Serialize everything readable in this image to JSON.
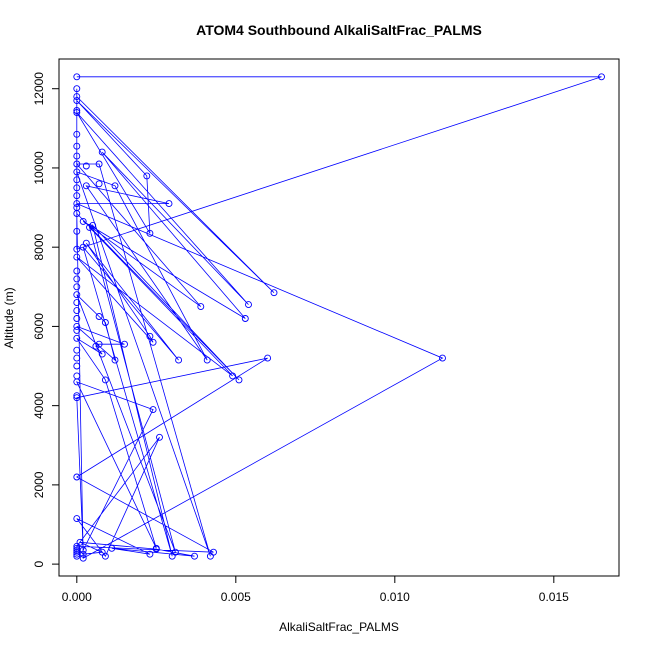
{
  "chart_data": {
    "type": "line",
    "title": "ATOM4 Southbound AlkaliSaltFrac_PALMS",
    "xlabel": "AlkaliSaltFrac_PALMS",
    "ylabel": "Altitude (m)",
    "xlim": [
      -0.00056,
      0.01705
    ],
    "ylim": [
      -300,
      12750
    ],
    "x_ticks": [
      0,
      0.005,
      0.01,
      0.015
    ],
    "x_tick_labels": [
      "0.000",
      "0.005",
      "0.010",
      "0.015"
    ],
    "y_ticks": [
      0,
      2000,
      4000,
      6000,
      8000,
      10000,
      12000
    ],
    "y_tick_labels": [
      "0",
      "2000",
      "4000",
      "6000",
      "8000",
      "10000",
      "12000"
    ],
    "grid": false,
    "color": "#0000ff",
    "series": [
      {
        "marker": "open-circle",
        "points": [
          [
            0,
            12300
          ],
          [
            0.0165,
            12300
          ],
          [
            0,
            7950
          ],
          [
            0,
            12000
          ],
          [
            0,
            11800
          ],
          [
            0.0062,
            6850
          ],
          [
            0,
            11700
          ],
          [
            0.0022,
            9800
          ],
          [
            0.0023,
            8350
          ],
          [
            0,
            11400
          ],
          [
            0.0054,
            6550
          ],
          [
            0.0008,
            10400
          ],
          [
            0.0053,
            6200
          ],
          [
            0.0002,
            8650
          ],
          [
            0.0039,
            6500
          ],
          [
            0,
            10100
          ],
          [
            0.0007,
            10100
          ],
          [
            0.0042,
            200
          ],
          [
            0,
            9900
          ],
          [
            0.0012,
            9550
          ],
          [
            0.0041,
            5150
          ],
          [
            0.0003,
            9550
          ],
          [
            0.0029,
            9100
          ],
          [
            0,
            9100
          ],
          [
            0.0115,
            5200
          ],
          [
            0.0002,
            150
          ],
          [
            0,
            8850
          ],
          [
            0.0051,
            4650
          ],
          [
            0.0005,
            8550
          ],
          [
            0.003,
            200
          ],
          [
            0.0002,
            8000
          ],
          [
            0.0032,
            5150
          ],
          [
            0.0003,
            8100
          ],
          [
            0.0023,
            5750
          ],
          [
            0.0024,
            5600
          ],
          [
            0,
            7750
          ],
          [
            0.0049,
            4750
          ],
          [
            0.0004,
            8500
          ],
          [
            0.0031,
            300
          ],
          [
            0,
            6800
          ],
          [
            0.0007,
            6250
          ],
          [
            0.0009,
            6100
          ],
          [
            0.0012,
            5150
          ],
          [
            0,
            6000
          ],
          [
            0.0015,
            5550
          ],
          [
            0.0007,
            5550
          ],
          [
            0.0006,
            5500
          ],
          [
            0.0008,
            5300
          ],
          [
            0,
            5700
          ],
          [
            0.0009,
            4650
          ],
          [
            0.0025,
            400
          ],
          [
            0,
            4600
          ],
          [
            0.0024,
            3900
          ],
          [
            0.0002,
            350
          ],
          [
            0,
            4200
          ],
          [
            0.006,
            5200
          ],
          [
            0,
            2200
          ],
          [
            0.0043,
            300
          ],
          [
            0,
            450
          ],
          [
            0.0026,
            3200
          ],
          [
            0.0009,
            200
          ],
          [
            0,
            1150
          ],
          [
            0.0023,
            250
          ],
          [
            0.0011,
            400
          ],
          [
            0.0037,
            200
          ],
          [
            0.0025,
            380
          ],
          [
            0.0001,
            550
          ],
          [
            0.0008,
            300
          ],
          [
            0.0002,
            250
          ],
          [
            0,
            400
          ],
          [
            0,
            250
          ]
        ]
      }
    ],
    "extra_points": [
      [
        0,
        11450
      ],
      [
        0,
        10850
      ],
      [
        0,
        10550
      ],
      [
        0,
        10300
      ],
      [
        0,
        9700
      ],
      [
        0,
        9500
      ],
      [
        0,
        9300
      ],
      [
        0,
        9000
      ],
      [
        0,
        8400
      ],
      [
        0,
        7400
      ],
      [
        0,
        7200
      ],
      [
        0,
        7000
      ],
      [
        0,
        6600
      ],
      [
        0,
        6400
      ],
      [
        0,
        6200
      ],
      [
        0,
        5900
      ],
      [
        0,
        5400
      ],
      [
        0,
        5200
      ],
      [
        0,
        5000
      ],
      [
        0,
        4750
      ],
      [
        0,
        4250
      ],
      [
        0,
        350
      ],
      [
        0,
        300
      ],
      [
        0,
        200
      ],
      [
        0.0007,
        9600
      ],
      [
        0.0003,
        10050
      ]
    ]
  }
}
